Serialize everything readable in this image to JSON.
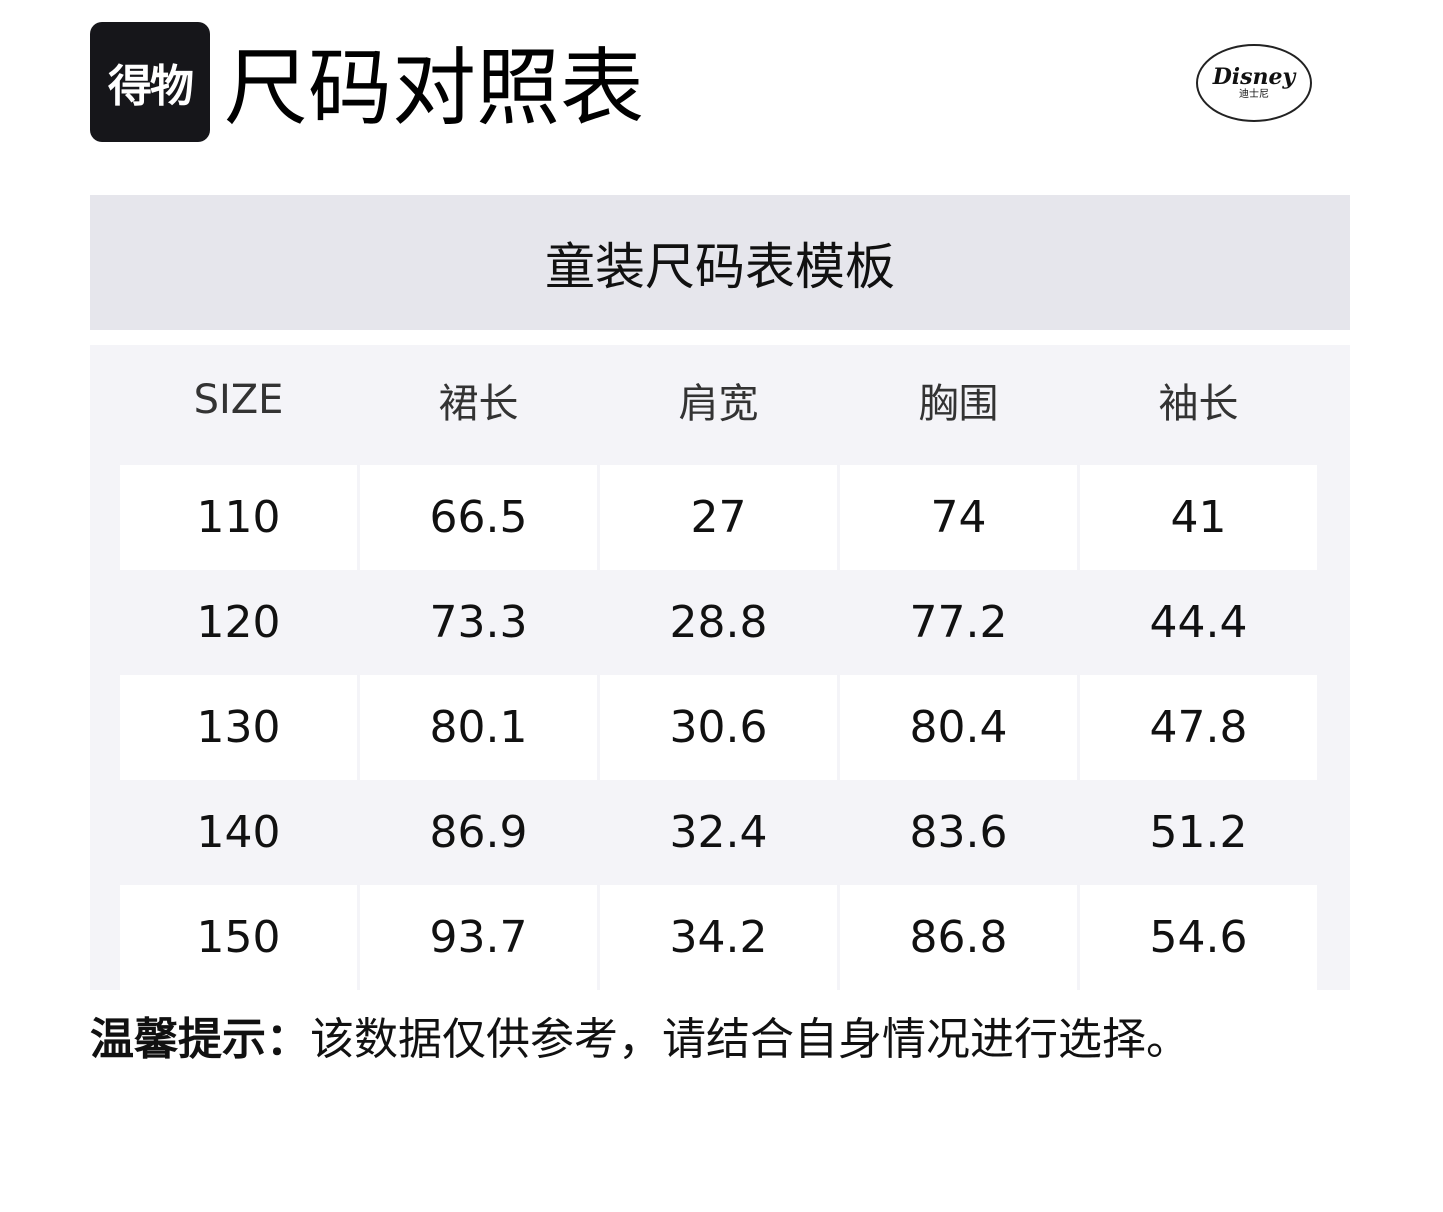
{
  "brand": {
    "logo_text": "得物",
    "disney_logo": "Disney",
    "disney_cn": "迪士尼"
  },
  "title": "尺码对照表",
  "table": {
    "caption": "童装尺码表模板",
    "headers": [
      "SIZE",
      "裙长",
      "肩宽",
      "胸围",
      "袖长"
    ],
    "rows": [
      [
        "110",
        "66.5",
        "27",
        "74",
        "41"
      ],
      [
        "120",
        "73.3",
        "28.8",
        "77.2",
        "44.4"
      ],
      [
        "130",
        "80.1",
        "30.6",
        "80.4",
        "47.8"
      ],
      [
        "140",
        "86.9",
        "32.4",
        "83.6",
        "51.2"
      ],
      [
        "150",
        "93.7",
        "34.2",
        "86.8",
        "54.6"
      ]
    ]
  },
  "tip": {
    "label": "温馨提示：",
    "text": "该数据仅供参考，请结合自身情况进行选择。"
  }
}
